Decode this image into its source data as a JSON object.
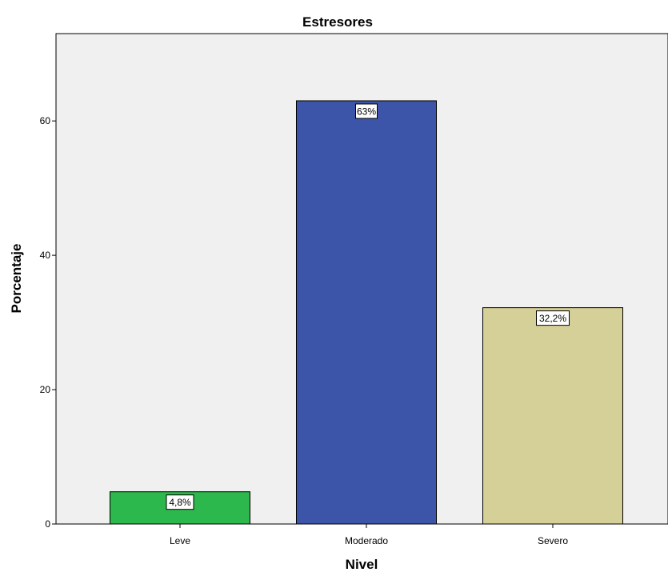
{
  "chart_data": {
    "type": "bar",
    "title": "Estresores",
    "xlabel": "Nivel",
    "ylabel": "Porcentaje",
    "categories": [
      "Leve",
      "Moderado",
      "Severo"
    ],
    "values": [
      4.8,
      63,
      32.2
    ],
    "data_labels": [
      "4,8%",
      "63%",
      "32,2%"
    ],
    "ylim": [
      0,
      73
    ],
    "yticks": [
      0,
      20,
      40,
      60
    ],
    "ytick_labels": [
      "0",
      "20",
      "40",
      "60"
    ],
    "grid": false,
    "legend": "none",
    "colors": [
      "#2db84d",
      "#3d55a8",
      "#d5cf98"
    ],
    "plot_background": "#f0f0f0"
  }
}
